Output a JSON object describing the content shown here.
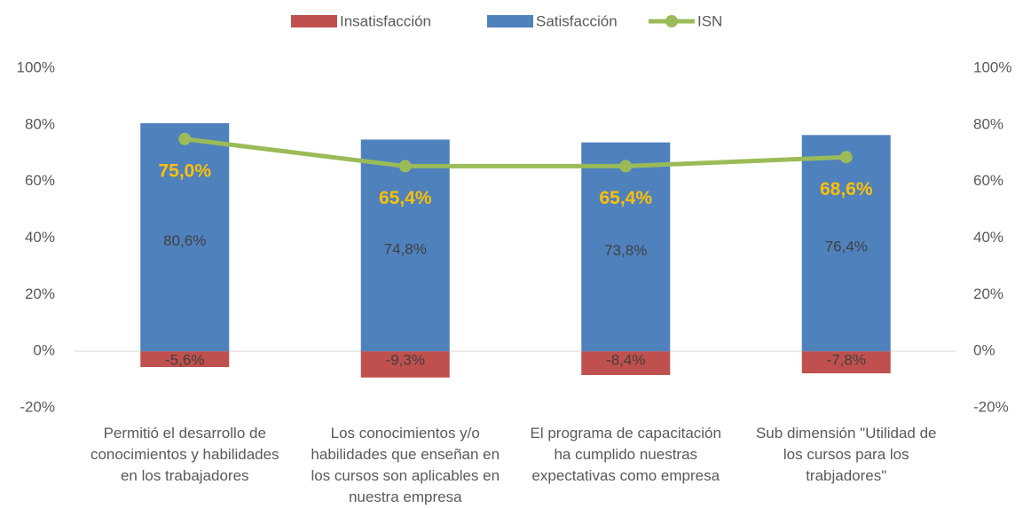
{
  "chart_data": {
    "type": "bar",
    "categories": [
      "Permitió el desarrollo de conocimientos y habilidades en los trabajadores",
      "Los conocimientos y/o habilidades que enseñan en los cursos son aplicables en nuestra empresa",
      "El programa de capacitación ha cumplido nuestras expectativas como empresa",
      "Sub dimensión \"Utilidad de los cursos para los trabjadores\""
    ],
    "series": [
      {
        "name": "Insatisfacción",
        "type": "bar",
        "color": "#c0504d",
        "values": [
          -5.6,
          -9.3,
          -8.4,
          -7.8
        ],
        "value_labels": [
          "-5,6%",
          "-9,3%",
          "-8,4%",
          "-7,8%"
        ],
        "label_color": "#404040"
      },
      {
        "name": "Satisfacción",
        "type": "bar",
        "color": "#4f81bd",
        "values": [
          80.6,
          74.8,
          73.8,
          76.4
        ],
        "value_labels": [
          "80,6%",
          "74,8%",
          "73,8%",
          "76,4%"
        ],
        "label_color": "#404040"
      },
      {
        "name": "ISN",
        "type": "line",
        "axis": "y2",
        "color": "#9bbb59",
        "values": [
          75.0,
          65.4,
          65.4,
          68.6
        ],
        "value_labels": [
          "75,0%",
          "65,4%",
          "65,4%",
          "68,6%"
        ],
        "label_color": "#ffc000"
      }
    ],
    "ylim": [
      -20,
      100
    ],
    "yticks": [
      {
        "value": -20,
        "label": "-20%"
      },
      {
        "value": 0,
        "label": "0%"
      },
      {
        "value": 20,
        "label": "20%"
      },
      {
        "value": 40,
        "label": "40%"
      },
      {
        "value": 60,
        "label": "60%"
      },
      {
        "value": 80,
        "label": "80%"
      },
      {
        "value": 100,
        "label": "100%"
      }
    ],
    "y2lim": [
      -20,
      100
    ],
    "y2ticks": [
      {
        "value": -20,
        "label": "-20%"
      },
      {
        "value": 0,
        "label": "0%"
      },
      {
        "value": 20,
        "label": "20%"
      },
      {
        "value": 40,
        "label": "40%"
      },
      {
        "value": 60,
        "label": "60%"
      },
      {
        "value": 80,
        "label": "80%"
      },
      {
        "value": 100,
        "label": "100%"
      }
    ],
    "grid": false,
    "legend": "top"
  }
}
